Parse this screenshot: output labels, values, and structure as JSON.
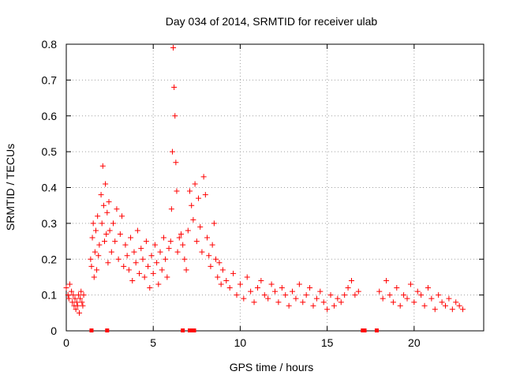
{
  "chart_data": {
    "type": "scatter",
    "title": "Day 034 of 2014, SRMTID for receiver ulab",
    "xlabel": "GPS time / hours",
    "ylabel": "SRMTID / TECUs",
    "xlim": [
      0,
      24
    ],
    "ylim": [
      0,
      0.8
    ],
    "x_ticks": [
      0,
      5,
      10,
      15,
      20
    ],
    "x_tick_labels": [
      "0",
      "5",
      "10",
      "15",
      "20"
    ],
    "y_ticks": [
      0,
      0.1,
      0.2,
      0.3,
      0.4,
      0.5,
      0.6,
      0.7,
      0.8
    ],
    "y_tick_labels": [
      "0",
      "0.1",
      "0.2",
      "0.3",
      "0.4",
      "0.5",
      "0.6",
      "0.7",
      "0.8"
    ],
    "grid": true,
    "marker": "+",
    "series": [
      {
        "name": "SRMTID",
        "color": "#ff0000",
        "x": [
          0.0,
          0.1,
          0.15,
          0.2,
          0.3,
          0.35,
          0.4,
          0.45,
          0.5,
          0.55,
          0.6,
          0.65,
          0.7,
          0.75,
          0.8,
          0.85,
          0.9,
          0.95,
          1.0,
          1.4,
          1.45,
          1.5,
          1.55,
          1.6,
          1.65,
          1.7,
          1.75,
          1.8,
          1.85,
          1.9,
          2.0,
          2.05,
          2.1,
          2.15,
          2.2,
          2.25,
          2.3,
          2.35,
          2.4,
          2.45,
          2.5,
          2.6,
          2.7,
          2.8,
          2.9,
          3.0,
          3.1,
          3.2,
          3.3,
          3.4,
          3.5,
          3.6,
          3.7,
          3.8,
          3.9,
          4.0,
          4.1,
          4.2,
          4.3,
          4.4,
          4.5,
          4.6,
          4.7,
          4.8,
          4.9,
          5.0,
          5.1,
          5.2,
          5.3,
          5.4,
          5.5,
          5.6,
          5.7,
          5.8,
          5.9,
          6.0,
          6.05,
          6.1,
          6.15,
          6.2,
          6.25,
          6.3,
          6.35,
          6.4,
          6.5,
          6.6,
          6.7,
          6.8,
          6.9,
          7.0,
          7.1,
          7.2,
          7.3,
          7.4,
          7.5,
          7.6,
          7.7,
          7.8,
          7.9,
          8.0,
          8.1,
          8.2,
          8.3,
          8.4,
          8.5,
          8.6,
          8.7,
          8.8,
          8.9,
          9.0,
          9.2,
          9.4,
          9.6,
          9.8,
          10.0,
          10.2,
          10.4,
          10.6,
          10.8,
          11.0,
          11.2,
          11.4,
          11.6,
          11.8,
          12.0,
          12.2,
          12.4,
          12.6,
          12.8,
          13.0,
          13.2,
          13.4,
          13.6,
          13.8,
          14.0,
          14.2,
          14.4,
          14.6,
          14.8,
          15.0,
          15.2,
          15.4,
          15.6,
          15.8,
          16.0,
          16.2,
          16.4,
          16.6,
          16.8,
          18.0,
          18.2,
          18.4,
          18.6,
          18.8,
          19.0,
          19.2,
          19.4,
          19.6,
          19.8,
          20.0,
          20.2,
          20.4,
          20.6,
          20.8,
          21.0,
          21.2,
          21.4,
          21.6,
          21.8,
          22.0,
          22.2,
          22.4,
          22.6,
          22.8
        ],
        "y": [
          0.12,
          0.1,
          0.09,
          0.13,
          0.11,
          0.08,
          0.1,
          0.07,
          0.09,
          0.06,
          0.08,
          0.07,
          0.1,
          0.05,
          0.09,
          0.11,
          0.08,
          0.07,
          0.1,
          0.2,
          0.18,
          0.26,
          0.3,
          0.15,
          0.22,
          0.28,
          0.17,
          0.32,
          0.21,
          0.24,
          0.38,
          0.3,
          0.46,
          0.35,
          0.25,
          0.41,
          0.27,
          0.33,
          0.19,
          0.36,
          0.28,
          0.22,
          0.3,
          0.25,
          0.34,
          0.2,
          0.27,
          0.32,
          0.18,
          0.24,
          0.21,
          0.17,
          0.26,
          0.14,
          0.22,
          0.19,
          0.28,
          0.16,
          0.23,
          0.2,
          0.15,
          0.25,
          0.18,
          0.12,
          0.21,
          0.16,
          0.24,
          0.19,
          0.13,
          0.22,
          0.17,
          0.26,
          0.2,
          0.15,
          0.23,
          0.25,
          0.34,
          0.5,
          0.79,
          0.68,
          0.6,
          0.47,
          0.39,
          0.22,
          0.26,
          0.27,
          0.24,
          0.2,
          0.17,
          0.28,
          0.39,
          0.35,
          0.31,
          0.41,
          0.25,
          0.37,
          0.29,
          0.22,
          0.43,
          0.38,
          0.26,
          0.21,
          0.18,
          0.24,
          0.3,
          0.2,
          0.15,
          0.19,
          0.13,
          0.17,
          0.14,
          0.12,
          0.16,
          0.1,
          0.13,
          0.09,
          0.15,
          0.11,
          0.08,
          0.12,
          0.14,
          0.1,
          0.09,
          0.13,
          0.11,
          0.08,
          0.12,
          0.1,
          0.07,
          0.11,
          0.09,
          0.13,
          0.08,
          0.1,
          0.12,
          0.07,
          0.09,
          0.11,
          0.08,
          0.06,
          0.1,
          0.07,
          0.09,
          0.08,
          0.1,
          0.12,
          0.14,
          0.1,
          0.11,
          0.11,
          0.09,
          0.14,
          0.1,
          0.08,
          0.12,
          0.07,
          0.1,
          0.09,
          0.13,
          0.08,
          0.11,
          0.1,
          0.07,
          0.12,
          0.09,
          0.06,
          0.1,
          0.08,
          0.07,
          0.09,
          0.06,
          0.08,
          0.07,
          0.06
        ]
      }
    ],
    "zero_markers_x": [
      1.45,
      2.35,
      6.7,
      7.1,
      7.25,
      7.35,
      17.05,
      17.1,
      17.15,
      17.85
    ]
  }
}
